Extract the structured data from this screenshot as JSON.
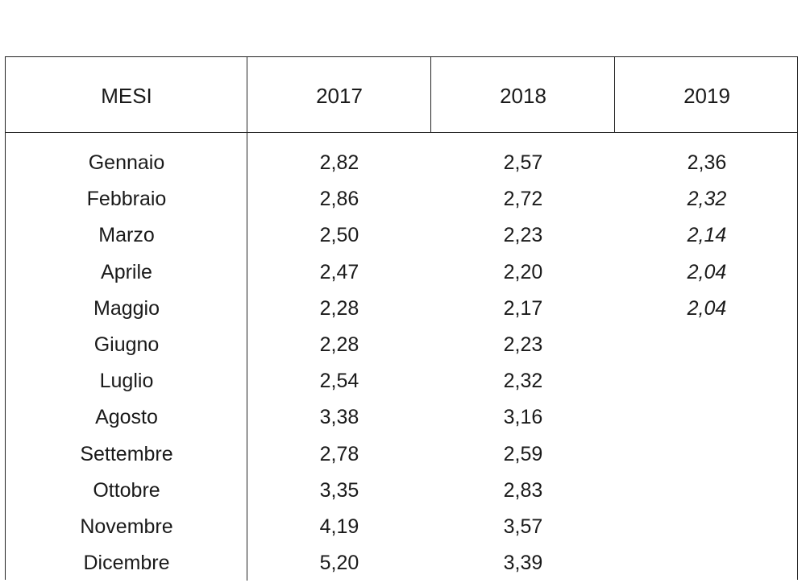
{
  "table": {
    "headers": [
      "MESI",
      "2017",
      "2018",
      "2019"
    ],
    "rows": [
      {
        "month": "Gennaio",
        "y2017": "2,82",
        "y2018": "2,57",
        "y2019": "2,36"
      },
      {
        "month": "Febbraio",
        "y2017": "2,86",
        "y2018": "2,72",
        "y2019": "2,32"
      },
      {
        "month": "Marzo",
        "y2017": "2,50",
        "y2018": "2,23",
        "y2019": "2,14"
      },
      {
        "month": "Aprile",
        "y2017": "2,47",
        "y2018": "2,20",
        "y2019": "2,04"
      },
      {
        "month": "Maggio",
        "y2017": "2,28",
        "y2018": "2,17",
        "y2019": "2,04"
      },
      {
        "month": "Giugno",
        "y2017": "2,28",
        "y2018": "2,23",
        "y2019": ""
      },
      {
        "month": "Luglio",
        "y2017": "2,54",
        "y2018": "2,32",
        "y2019": ""
      },
      {
        "month": "Agosto",
        "y2017": "3,38",
        "y2018": "3,16",
        "y2019": ""
      },
      {
        "month": "Settembre",
        "y2017": "2,78",
        "y2018": "2,59",
        "y2019": ""
      },
      {
        "month": "Ottobre",
        "y2017": "3,35",
        "y2018": "2,83",
        "y2019": ""
      },
      {
        "month": "Novembre",
        "y2017": "4,19",
        "y2018": "3,57",
        "y2019": ""
      },
      {
        "month": "Dicembre",
        "y2017": "5,20",
        "y2018": "3,39",
        "y2019": ""
      }
    ],
    "italic_2019_rows": [
      1,
      2,
      3,
      4
    ]
  }
}
